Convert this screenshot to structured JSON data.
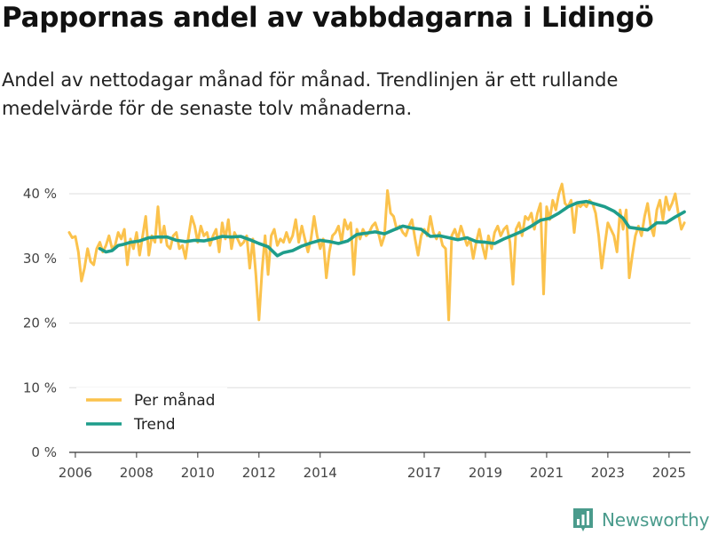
{
  "title": "Pappornas andel av vabbdagarna i Lidingö",
  "subtitle": "Andel av nettodagar månad för månad. Trendlinjen är ett rullande medelvärde för de senaste tolv månaderna.",
  "brand": {
    "name": "Newsworthy",
    "logo_icon": "bar-chart-logo-icon"
  },
  "colors": {
    "monthly": "#FBC24C",
    "trend": "#1E9D8B",
    "grid": "#DDDDDD",
    "brand": "#4A9B8C"
  },
  "chart_data": {
    "type": "line",
    "title": "Pappornas andel av vabbdagarna i Lidingö",
    "xlabel": "",
    "ylabel": "",
    "xlim": [
      2006.0,
      2025.6
    ],
    "ylim": [
      0,
      40
    ],
    "y_ticks": [
      0,
      10,
      20,
      30,
      40
    ],
    "y_tick_labels": [
      "0 %",
      "10 %",
      "20 %",
      "30 %",
      "40 %"
    ],
    "x_ticks": [
      2006,
      2008,
      2010,
      2012,
      2014,
      2017,
      2019,
      2021,
      2023,
      2025
    ],
    "x_tick_labels": [
      "2006",
      "2008",
      "2010",
      "2012",
      "2014",
      "2017",
      "2019",
      "2021",
      "2023",
      "2025"
    ],
    "legend": {
      "position": "bottom-left",
      "entries": [
        "Per månad",
        "Trend"
      ]
    },
    "series": [
      {
        "name": "Per månad",
        "color": "#FBC24C",
        "points": [
          [
            2006.0,
            34.0
          ],
          [
            2006.1,
            33.2
          ],
          [
            2006.2,
            33.4
          ],
          [
            2006.3,
            31.0
          ],
          [
            2006.4,
            26.5
          ],
          [
            2006.5,
            28.5
          ],
          [
            2006.6,
            31.5
          ],
          [
            2006.7,
            29.5
          ],
          [
            2006.8,
            29.0
          ],
          [
            2006.9,
            31.5
          ],
          [
            2007.0,
            32.5
          ],
          [
            2007.1,
            31.0
          ],
          [
            2007.2,
            32.0
          ],
          [
            2007.3,
            33.5
          ],
          [
            2007.4,
            31.5
          ],
          [
            2007.5,
            32.0
          ],
          [
            2007.6,
            34.0
          ],
          [
            2007.7,
            33.0
          ],
          [
            2007.8,
            34.5
          ],
          [
            2007.9,
            29.0
          ],
          [
            2008.0,
            33.0
          ],
          [
            2008.1,
            31.5
          ],
          [
            2008.2,
            34.0
          ],
          [
            2008.3,
            30.5
          ],
          [
            2008.4,
            33.5
          ],
          [
            2008.5,
            36.5
          ],
          [
            2008.6,
            30.5
          ],
          [
            2008.7,
            33.5
          ],
          [
            2008.8,
            32.5
          ],
          [
            2008.9,
            38.0
          ],
          [
            2009.0,
            32.5
          ],
          [
            2009.1,
            35.0
          ],
          [
            2009.2,
            32.0
          ],
          [
            2009.3,
            31.5
          ],
          [
            2009.4,
            33.5
          ],
          [
            2009.5,
            34.0
          ],
          [
            2009.6,
            31.5
          ],
          [
            2009.7,
            32.0
          ],
          [
            2009.8,
            30.0
          ],
          [
            2009.9,
            33.5
          ],
          [
            2010.0,
            36.5
          ],
          [
            2010.1,
            35.0
          ],
          [
            2010.2,
            32.5
          ],
          [
            2010.3,
            35.0
          ],
          [
            2010.4,
            33.5
          ],
          [
            2010.5,
            34.0
          ],
          [
            2010.6,
            32.0
          ],
          [
            2010.7,
            33.5
          ],
          [
            2010.8,
            34.5
          ],
          [
            2010.9,
            31.0
          ],
          [
            2011.0,
            35.5
          ],
          [
            2011.1,
            33.0
          ],
          [
            2011.2,
            36.0
          ],
          [
            2011.3,
            31.5
          ],
          [
            2011.4,
            34.0
          ],
          [
            2011.5,
            33.0
          ],
          [
            2011.6,
            32.0
          ],
          [
            2011.7,
            32.5
          ],
          [
            2011.8,
            33.5
          ],
          [
            2011.9,
            28.5
          ],
          [
            2012.0,
            33.0
          ],
          [
            2012.1,
            27.5
          ],
          [
            2012.2,
            20.5
          ],
          [
            2012.3,
            28.0
          ],
          [
            2012.4,
            33.5
          ],
          [
            2012.5,
            27.5
          ],
          [
            2012.6,
            33.5
          ],
          [
            2012.7,
            34.5
          ],
          [
            2012.8,
            32.0
          ],
          [
            2012.9,
            33.0
          ],
          [
            2013.0,
            32.5
          ],
          [
            2013.1,
            34.0
          ],
          [
            2013.2,
            32.5
          ],
          [
            2013.3,
            33.5
          ],
          [
            2013.4,
            36.0
          ],
          [
            2013.5,
            32.5
          ],
          [
            2013.6,
            35.0
          ],
          [
            2013.7,
            33.0
          ],
          [
            2013.8,
            31.0
          ],
          [
            2013.9,
            33.0
          ],
          [
            2014.0,
            36.5
          ],
          [
            2014.1,
            33.5
          ],
          [
            2014.2,
            31.5
          ],
          [
            2014.3,
            33.0
          ],
          [
            2014.4,
            27.0
          ],
          [
            2014.5,
            31.0
          ],
          [
            2014.6,
            33.5
          ],
          [
            2014.7,
            34.0
          ],
          [
            2014.8,
            35.0
          ],
          [
            2014.9,
            32.5
          ],
          [
            2015.0,
            36.0
          ],
          [
            2015.1,
            34.5
          ],
          [
            2015.2,
            35.5
          ],
          [
            2015.3,
            27.5
          ],
          [
            2015.4,
            34.5
          ],
          [
            2015.5,
            33.0
          ],
          [
            2015.6,
            34.5
          ],
          [
            2015.7,
            33.5
          ],
          [
            2015.8,
            34.0
          ],
          [
            2015.9,
            35.0
          ],
          [
            2016.0,
            35.5
          ],
          [
            2016.1,
            34.0
          ],
          [
            2016.2,
            32.0
          ],
          [
            2016.3,
            33.5
          ],
          [
            2016.4,
            40.5
          ],
          [
            2016.5,
            37.0
          ],
          [
            2016.6,
            36.5
          ],
          [
            2016.7,
            34.5
          ],
          [
            2016.8,
            35.0
          ],
          [
            2016.9,
            34.0
          ],
          [
            2017.0,
            33.5
          ],
          [
            2017.1,
            35.0
          ],
          [
            2017.2,
            36.0
          ],
          [
            2017.3,
            33.0
          ],
          [
            2017.4,
            30.5
          ],
          [
            2017.5,
            33.5
          ],
          [
            2017.6,
            34.5
          ],
          [
            2017.7,
            33.5
          ],
          [
            2017.8,
            36.5
          ],
          [
            2017.9,
            34.0
          ],
          [
            2018.0,
            33.0
          ],
          [
            2018.1,
            34.0
          ],
          [
            2018.2,
            32.0
          ],
          [
            2018.3,
            31.5
          ],
          [
            2018.4,
            20.5
          ],
          [
            2018.5,
            33.5
          ],
          [
            2018.6,
            34.5
          ],
          [
            2018.7,
            33.0
          ],
          [
            2018.8,
            35.0
          ],
          [
            2018.9,
            33.5
          ],
          [
            2019.0,
            32.0
          ],
          [
            2019.1,
            33.0
          ],
          [
            2019.2,
            30.0
          ],
          [
            2019.3,
            32.5
          ],
          [
            2019.4,
            34.5
          ],
          [
            2019.5,
            32.0
          ],
          [
            2019.6,
            30.0
          ],
          [
            2019.7,
            33.5
          ],
          [
            2019.8,
            31.5
          ],
          [
            2019.9,
            34.0
          ],
          [
            2020.0,
            35.0
          ],
          [
            2020.1,
            33.5
          ],
          [
            2020.2,
            34.5
          ],
          [
            2020.3,
            35.0
          ],
          [
            2020.4,
            32.5
          ],
          [
            2020.5,
            26.0
          ],
          [
            2020.6,
            34.5
          ],
          [
            2020.7,
            35.5
          ],
          [
            2020.8,
            33.5
          ],
          [
            2020.9,
            36.5
          ],
          [
            2021.0,
            36.0
          ],
          [
            2021.1,
            37.0
          ],
          [
            2021.2,
            34.5
          ],
          [
            2021.3,
            37.0
          ],
          [
            2021.4,
            38.5
          ],
          [
            2021.5,
            24.5
          ],
          [
            2021.6,
            38.0
          ],
          [
            2021.7,
            36.0
          ],
          [
            2021.8,
            39.0
          ],
          [
            2021.9,
            37.5
          ],
          [
            2022.0,
            40.0
          ],
          [
            2022.1,
            41.5
          ],
          [
            2022.2,
            38.5
          ],
          [
            2022.3,
            38.0
          ],
          [
            2022.4,
            39.0
          ],
          [
            2022.5,
            34.0
          ],
          [
            2022.6,
            38.5
          ],
          [
            2022.7,
            38.0
          ],
          [
            2022.8,
            38.5
          ],
          [
            2022.9,
            38.0
          ],
          [
            2023.0,
            39.0
          ],
          [
            2023.1,
            38.5
          ],
          [
            2023.2,
            37.0
          ],
          [
            2023.3,
            33.5
          ],
          [
            2023.4,
            28.5
          ],
          [
            2023.5,
            32.0
          ],
          [
            2023.6,
            35.5
          ],
          [
            2023.7,
            34.5
          ],
          [
            2023.8,
            33.5
          ],
          [
            2023.9,
            31.0
          ],
          [
            2024.0,
            37.5
          ],
          [
            2024.1,
            34.5
          ],
          [
            2024.2,
            37.5
          ],
          [
            2024.3,
            27.0
          ],
          [
            2024.4,
            30.5
          ],
          [
            2024.5,
            33.5
          ],
          [
            2024.6,
            35.0
          ],
          [
            2024.7,
            33.5
          ],
          [
            2024.8,
            36.5
          ],
          [
            2024.9,
            38.5
          ],
          [
            2025.0,
            35.0
          ],
          [
            2025.1,
            33.5
          ],
          [
            2025.2,
            37.5
          ],
          [
            2025.3,
            39.0
          ],
          [
            2025.4,
            36.0
          ],
          [
            2025.5,
            39.5
          ],
          [
            2025.6,
            37.5
          ],
          [
            2025.7,
            38.5
          ],
          [
            2025.8,
            40.0
          ],
          [
            2025.9,
            37.0
          ],
          [
            2026.0,
            34.5
          ],
          [
            2026.1,
            35.5
          ]
        ]
      },
      {
        "name": "Trend",
        "color": "#1E9D8B",
        "points": [
          [
            2007.0,
            31.5
          ],
          [
            2007.2,
            31.0
          ],
          [
            2007.4,
            31.2
          ],
          [
            2007.6,
            32.0
          ],
          [
            2007.8,
            32.2
          ],
          [
            2008.0,
            32.5
          ],
          [
            2008.3,
            32.7
          ],
          [
            2008.6,
            33.2
          ],
          [
            2008.9,
            33.3
          ],
          [
            2009.2,
            33.3
          ],
          [
            2009.5,
            32.8
          ],
          [
            2009.8,
            32.6
          ],
          [
            2010.1,
            32.8
          ],
          [
            2010.4,
            32.7
          ],
          [
            2010.7,
            33.0
          ],
          [
            2011.0,
            33.4
          ],
          [
            2011.3,
            33.3
          ],
          [
            2011.6,
            33.4
          ],
          [
            2011.9,
            32.9
          ],
          [
            2012.2,
            32.3
          ],
          [
            2012.5,
            31.8
          ],
          [
            2012.8,
            30.4
          ],
          [
            2013.0,
            30.9
          ],
          [
            2013.3,
            31.2
          ],
          [
            2013.6,
            31.9
          ],
          [
            2013.9,
            32.4
          ],
          [
            2014.2,
            32.8
          ],
          [
            2014.5,
            32.6
          ],
          [
            2014.8,
            32.3
          ],
          [
            2015.1,
            32.7
          ],
          [
            2015.4,
            33.7
          ],
          [
            2015.7,
            33.9
          ],
          [
            2016.0,
            34.1
          ],
          [
            2016.3,
            33.8
          ],
          [
            2016.6,
            34.4
          ],
          [
            2016.9,
            35.0
          ],
          [
            2017.2,
            34.7
          ],
          [
            2017.5,
            34.5
          ],
          [
            2017.8,
            33.4
          ],
          [
            2018.1,
            33.5
          ],
          [
            2018.4,
            33.2
          ],
          [
            2018.7,
            32.9
          ],
          [
            2019.0,
            33.2
          ],
          [
            2019.3,
            32.6
          ],
          [
            2019.6,
            32.5
          ],
          [
            2019.9,
            32.3
          ],
          [
            2020.2,
            33.0
          ],
          [
            2020.5,
            33.6
          ],
          [
            2020.8,
            34.2
          ],
          [
            2021.1,
            35.0
          ],
          [
            2021.4,
            35.9
          ],
          [
            2021.7,
            36.2
          ],
          [
            2022.0,
            37.0
          ],
          [
            2022.3,
            38.0
          ],
          [
            2022.6,
            38.6
          ],
          [
            2022.9,
            38.8
          ],
          [
            2023.2,
            38.4
          ],
          [
            2023.5,
            38.0
          ],
          [
            2023.8,
            37.3
          ],
          [
            2024.1,
            36.2
          ],
          [
            2024.3,
            34.8
          ],
          [
            2024.6,
            34.6
          ],
          [
            2024.9,
            34.4
          ],
          [
            2025.2,
            35.5
          ],
          [
            2025.5,
            35.5
          ],
          [
            2025.8,
            36.4
          ],
          [
            2026.1,
            37.2
          ]
        ]
      }
    ]
  }
}
